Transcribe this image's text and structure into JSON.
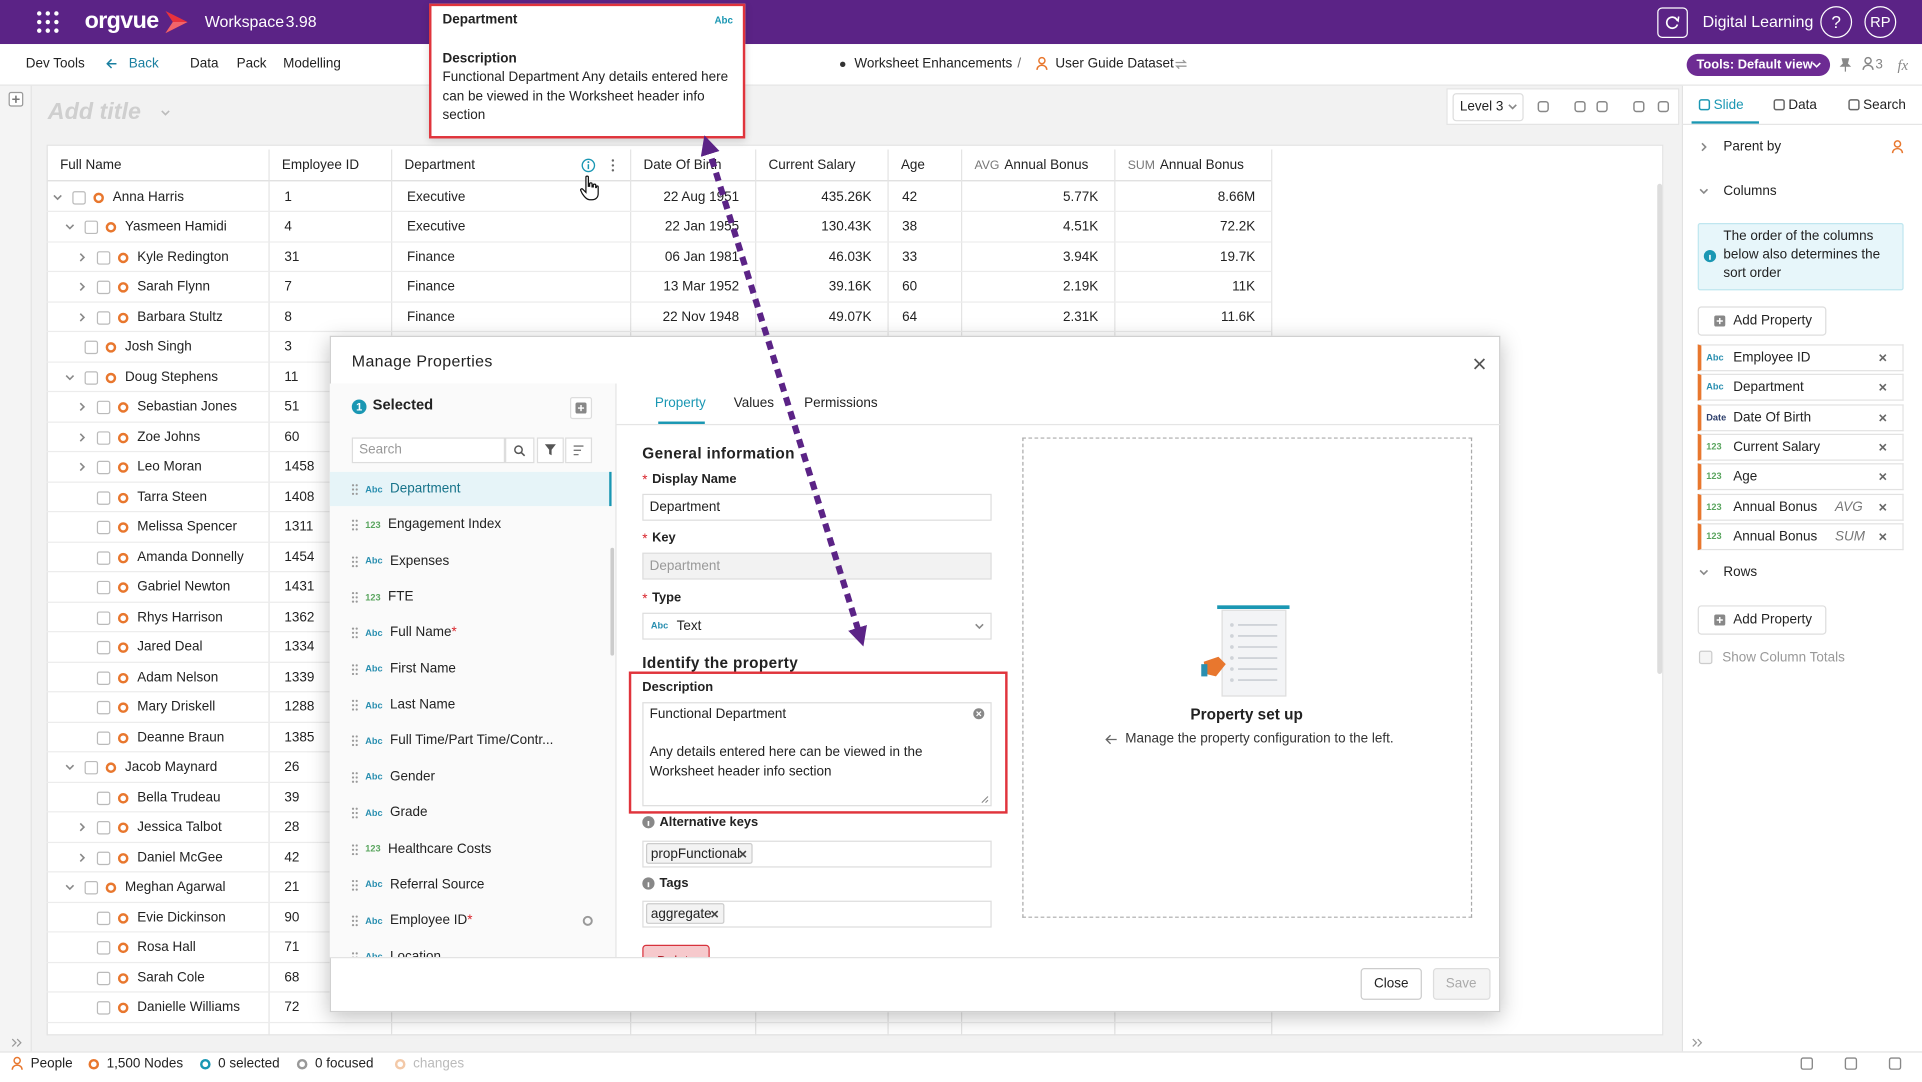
{
  "header": {
    "logo": "orgvue",
    "workspace": "Workspace",
    "version": "3.98",
    "product": "Digital Learning",
    "help": "?",
    "user": "RP"
  },
  "menu": {
    "items": [
      "Dev Tools",
      "Back",
      "Data",
      "Pack",
      "Modelling"
    ],
    "breadcrumb": [
      "Worksheet Enhancements",
      "/",
      "User Guide Dataset"
    ],
    "tools": "Tools: Default view",
    "viewers": "3",
    "formula": "fx"
  },
  "worksheet": {
    "title_placeholder": "Add title",
    "level": "Level 3",
    "columns": [
      {
        "name": "Full Name"
      },
      {
        "name": "Employee ID"
      },
      {
        "name": "Department"
      },
      {
        "name": "Date Of Birth"
      },
      {
        "name": "Current Salary"
      },
      {
        "name": "Age"
      },
      {
        "prefix": "AVG",
        "name": "Annual Bonus"
      },
      {
        "prefix": "SUM",
        "name": "Annual Bonus"
      }
    ],
    "rows": [
      [
        "Anna Harris",
        1,
        "Executive",
        "22 Aug 1951",
        "435.26K",
        42,
        "5.77K",
        "8.66M"
      ],
      [
        "Yasmeen Hamidi",
        4,
        "Executive",
        "22 Jan 1955",
        "130.43K",
        38,
        "4.51K",
        "72.2K"
      ],
      [
        "Kyle Redington",
        31,
        "Finance",
        "06 Jan 1981",
        "46.03K",
        33,
        "3.94K",
        "19.7K"
      ],
      [
        "Sarah Flynn",
        7,
        "Finance",
        "13 Mar 1952",
        "39.16K",
        60,
        "2.19K",
        "11K"
      ],
      [
        "Barbara Stultz",
        8,
        "Finance",
        "22 Nov 1948",
        "49.07K",
        64,
        "2.31K",
        "11.6K"
      ],
      [
        "Josh Singh",
        3
      ],
      [
        "Doug Stephens",
        11
      ],
      [
        "Sebastian Jones",
        51
      ],
      [
        "Zoe Johns",
        60
      ],
      [
        "Leo Moran",
        1458
      ],
      [
        "Tarra Steen",
        1408
      ],
      [
        "Melissa Spencer",
        1311
      ],
      [
        "Amanda Donnelly",
        1454
      ],
      [
        "Gabriel Newton",
        1431
      ],
      [
        "Rhys Harrison",
        1362
      ],
      [
        "Jared Deal",
        1334
      ],
      [
        "Adam Nelson",
        1339
      ],
      [
        "Mary Driskell",
        1288
      ],
      [
        "Deanne Braun",
        1385
      ],
      [
        "Jacob Maynard",
        26
      ],
      [
        "Bella Trudeau",
        39
      ],
      [
        "Jessica Talbot",
        28
      ],
      [
        "Daniel McGee",
        42
      ],
      [
        "Meghan Agarwal",
        21
      ],
      [
        "Evie Dickinson",
        90
      ],
      [
        "Rosa Hall",
        71
      ],
      [
        "Sarah Cole",
        68
      ],
      [
        "Danielle Williams",
        72
      ]
    ]
  },
  "tooltip": {
    "title": "Department",
    "type": "Abc",
    "label": "Description",
    "text": "Functional Department Any details entered here can be viewed in the Worksheet header info section"
  },
  "modal": {
    "title": "Manage Properties",
    "selected_count": 1,
    "selected_label": "Selected",
    "search_placeholder": "Search",
    "properties": [
      {
        "type": "Abc",
        "name": "Department"
      },
      {
        "type": "123",
        "name": "Engagement Index"
      },
      {
        "type": "Abc",
        "name": "Expenses"
      },
      {
        "type": "123",
        "name": "FTE"
      },
      {
        "type": "Abc",
        "name": "Full Name",
        "required": "*"
      },
      {
        "type": "Abc",
        "name": "First Name"
      },
      {
        "type": "Abc",
        "name": "Last Name"
      },
      {
        "type": "Abc",
        "name": "Full Time/Part Time/Contr..."
      },
      {
        "type": "Abc",
        "name": "Gender"
      },
      {
        "type": "Abc",
        "name": "Grade"
      },
      {
        "type": "123",
        "name": "Healthcare Costs"
      },
      {
        "type": "Abc",
        "name": "Referral Source"
      },
      {
        "type": "Abc",
        "name": "Employee ID",
        "required": "*"
      },
      {
        "type": "Abc",
        "name": "Location"
      }
    ],
    "tabs": [
      "Property",
      "Values",
      "Permissions"
    ],
    "general_heading": "General information",
    "required_mark": "*",
    "display_name_label": "Display Name",
    "display_name": "Department",
    "key_label": "Key",
    "key": "Department",
    "type_label": "Type",
    "type_badge": "Abc",
    "type": "Text",
    "identify_heading": "Identify the property",
    "description_label": "Description",
    "description": [
      "Functional Department",
      "Any details entered here can be viewed in the Worksheet header info section"
    ],
    "alt_keys_label": "Alternative keys",
    "alt_keys": [
      "propFunctional"
    ],
    "tags_label": "Tags",
    "tags": [
      "aggregate"
    ],
    "delete": "Delete",
    "setup_title": "Property set up",
    "setup_hint": "Manage the property configuration to the left.",
    "close": "Close",
    "save": "Save"
  },
  "sidebar": {
    "tabs": [
      "Slide",
      "Data",
      "Search"
    ],
    "parent_by": "Parent by",
    "columns_heading": "Columns",
    "columns_info": "The order of the columns below also determines the sort order",
    "add_property": "Add Property",
    "columns": [
      {
        "type": "Abc",
        "name": "Employee ID"
      },
      {
        "type": "Abc",
        "name": "Department"
      },
      {
        "type": "Date",
        "name": "Date Of Birth"
      },
      {
        "type": "123",
        "name": "Current Salary"
      },
      {
        "type": "123",
        "name": "Age"
      },
      {
        "type": "123",
        "name": "Annual Bonus",
        "aggregation": "AVG"
      },
      {
        "type": "123",
        "name": "Annual Bonus",
        "aggregation": "SUM"
      }
    ],
    "rows_heading": "Rows",
    "show_totals": "Show Column Totals"
  },
  "status": {
    "view": "People",
    "nodes": "1,500 Nodes",
    "selected": "0 selected",
    "focused": "0 focused",
    "changes": "changes"
  }
}
